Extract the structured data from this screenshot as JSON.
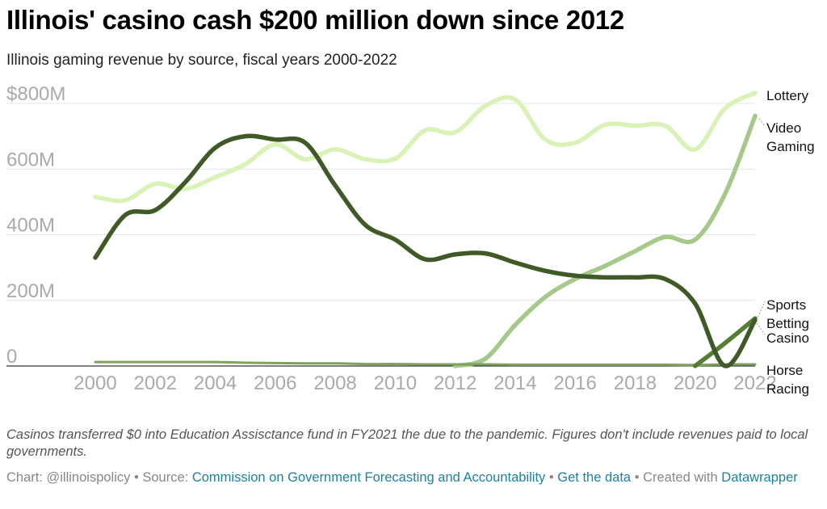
{
  "title": "Illinois' casino cash $200 million down since 2012",
  "subtitle": "Illinois gaming revenue by source, fiscal years 2000-2022",
  "notes": "Casinos transferred $0 into Education Assisctance fund in FY2021 the due to the pandemic. Figures don't include revenues paid to local governments.",
  "footer": {
    "chart_by": "Chart: @illinoispolicy",
    "source_prefix": "Source:",
    "source_link": "Commission on Government Forecasting and Accountability",
    "data_link": "Get the data",
    "created_prefix": "Created with",
    "created_link": "Datawrapper",
    "sep": "•"
  },
  "chart_data": {
    "type": "line",
    "title": "Illinois' casino cash $200 million down since 2012",
    "subtitle": "Illinois gaming revenue by source, fiscal years 2000-2022",
    "xlabel": "",
    "ylabel": "",
    "x": [
      2000,
      2001,
      2002,
      2003,
      2004,
      2005,
      2006,
      2007,
      2008,
      2009,
      2010,
      2011,
      2012,
      2013,
      2014,
      2015,
      2016,
      2017,
      2018,
      2019,
      2020,
      2021,
      2022
    ],
    "xticks": [
      "2000",
      "2002",
      "2004",
      "2006",
      "2008",
      "2010",
      "2012",
      "2014",
      "2016",
      "2018",
      "2020",
      "2022"
    ],
    "xtick_values": [
      2000,
      2002,
      2004,
      2006,
      2008,
      2010,
      2012,
      2014,
      2016,
      2018,
      2020,
      2022
    ],
    "xlim": [
      2000,
      2022
    ],
    "yticks": [
      "0",
      "200M",
      "400M",
      "600M",
      "$800M"
    ],
    "ytick_values": [
      0,
      200,
      400,
      600,
      800
    ],
    "ylim": [
      0,
      800
    ],
    "grid": true,
    "legend": "inline labels at right end of lines",
    "series": [
      {
        "name": "Lottery",
        "color": "#d9f2b6",
        "values": [
          515,
          505,
          555,
          540,
          575,
          615,
          675,
          630,
          660,
          630,
          632,
          718,
          712,
          792,
          812,
          690,
          680,
          735,
          732,
          732,
          660,
          785,
          832
        ]
      },
      {
        "name": "Video Gaming",
        "color": "#a6c98b",
        "values": [
          null,
          null,
          null,
          null,
          null,
          null,
          null,
          null,
          null,
          null,
          null,
          null,
          0,
          22,
          125,
          210,
          265,
          305,
          350,
          393,
          385,
          525,
          762
        ]
      },
      {
        "name": "Casino",
        "color": "#3f5a27",
        "values": [
          330,
          460,
          475,
          560,
          665,
          700,
          690,
          680,
          550,
          430,
          385,
          325,
          340,
          343,
          315,
          290,
          275,
          270,
          270,
          265,
          190,
          0,
          140
        ]
      },
      {
        "name": "Sports Betting",
        "color": "#567d34",
        "values": [
          null,
          null,
          null,
          null,
          null,
          null,
          null,
          null,
          null,
          null,
          null,
          null,
          null,
          null,
          null,
          null,
          null,
          null,
          null,
          null,
          0,
          70,
          145
        ]
      },
      {
        "name": "Horse Racing",
        "color": "#7fa05e",
        "values": [
          12,
          12,
          12,
          12,
          12,
          10,
          9,
          8,
          8,
          6,
          6,
          5,
          5,
          5,
          4,
          4,
          4,
          4,
          4,
          4,
          3,
          5,
          5
        ]
      }
    ]
  }
}
